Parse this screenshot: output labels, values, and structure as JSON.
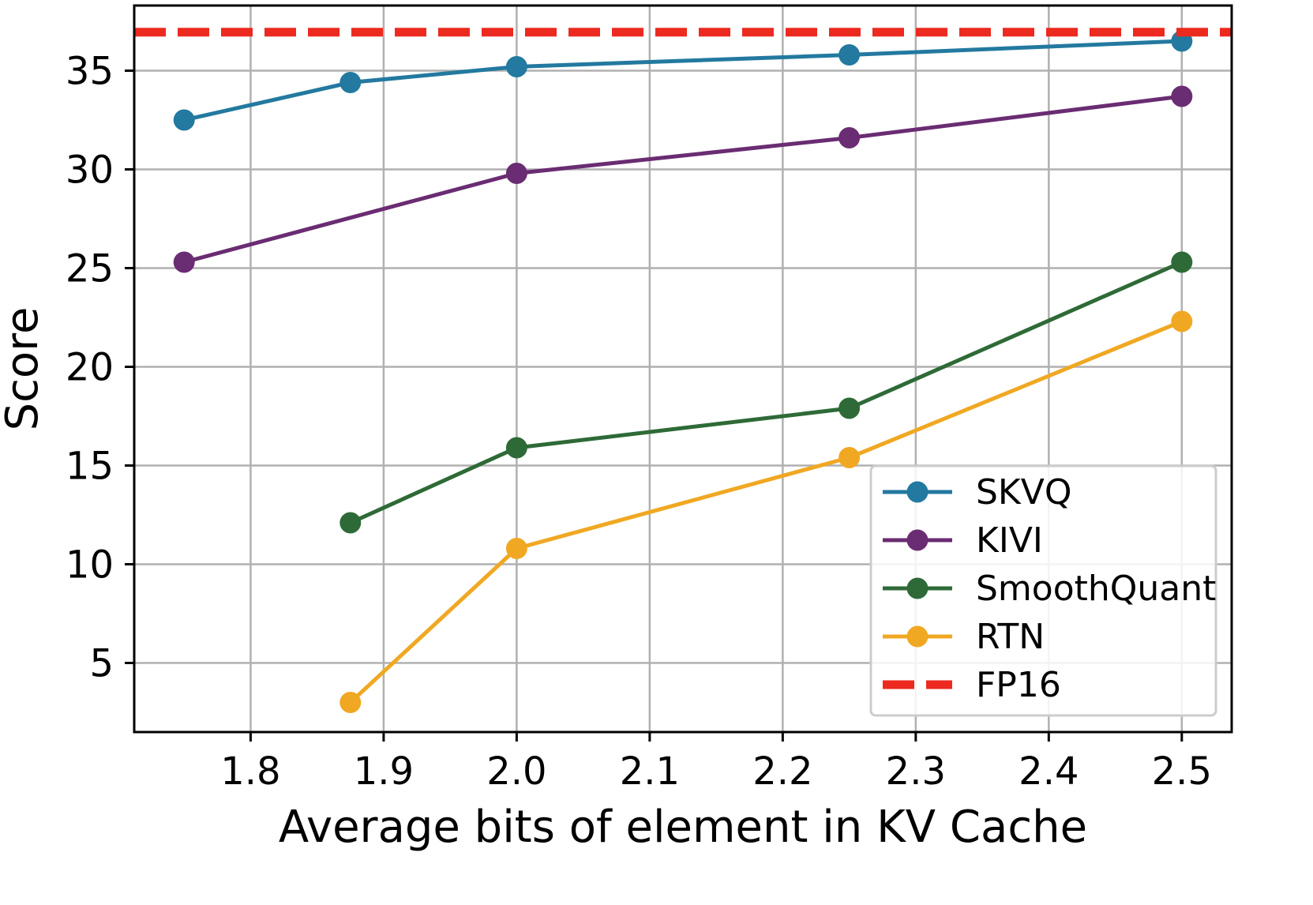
{
  "chart_data": {
    "type": "line",
    "title": "",
    "xlabel": "Average bits of element in KV Cache",
    "ylabel": "Score",
    "xlim": [
      1.7125,
      2.5375
    ],
    "ylim": [
      1.5,
      38.3
    ],
    "xticks": [
      1.8,
      1.9,
      2.0,
      2.1,
      2.2,
      2.3,
      2.4,
      2.5
    ],
    "xtick_labels": [
      "1.8",
      "1.9",
      "2.0",
      "2.1",
      "2.2",
      "2.3",
      "2.4",
      "2.5"
    ],
    "yticks": [
      5,
      10,
      15,
      20,
      25,
      30,
      35
    ],
    "ytick_labels": [
      "5",
      "10",
      "15",
      "20",
      "25",
      "30",
      "35"
    ],
    "grid": true,
    "legend_position": "bottom-right",
    "series": [
      {
        "name": "SKVQ",
        "color": "#23799f",
        "x": [
          1.75,
          1.875,
          2.0,
          2.25,
          2.5
        ],
        "y": [
          32.5,
          34.4,
          35.2,
          35.8,
          36.5
        ]
      },
      {
        "name": "KIVI",
        "color": "#6a2c72",
        "x": [
          1.75,
          2.0,
          2.25,
          2.5
        ],
        "y": [
          25.3,
          29.8,
          31.6,
          33.7
        ]
      },
      {
        "name": "SmoothQuant",
        "color": "#2e6a37",
        "x": [
          1.875,
          2.0,
          2.25,
          2.5
        ],
        "y": [
          12.1,
          15.9,
          17.9,
          25.3
        ]
      },
      {
        "name": "RTN",
        "color": "#f0a823",
        "x": [
          1.875,
          2.0,
          2.25,
          2.5
        ],
        "y": [
          3.0,
          10.8,
          15.4,
          22.3
        ]
      }
    ],
    "reference_lines": [
      {
        "name": "FP16",
        "color": "#ec2a1f",
        "y": 36.95,
        "style": "dashed"
      }
    ]
  }
}
